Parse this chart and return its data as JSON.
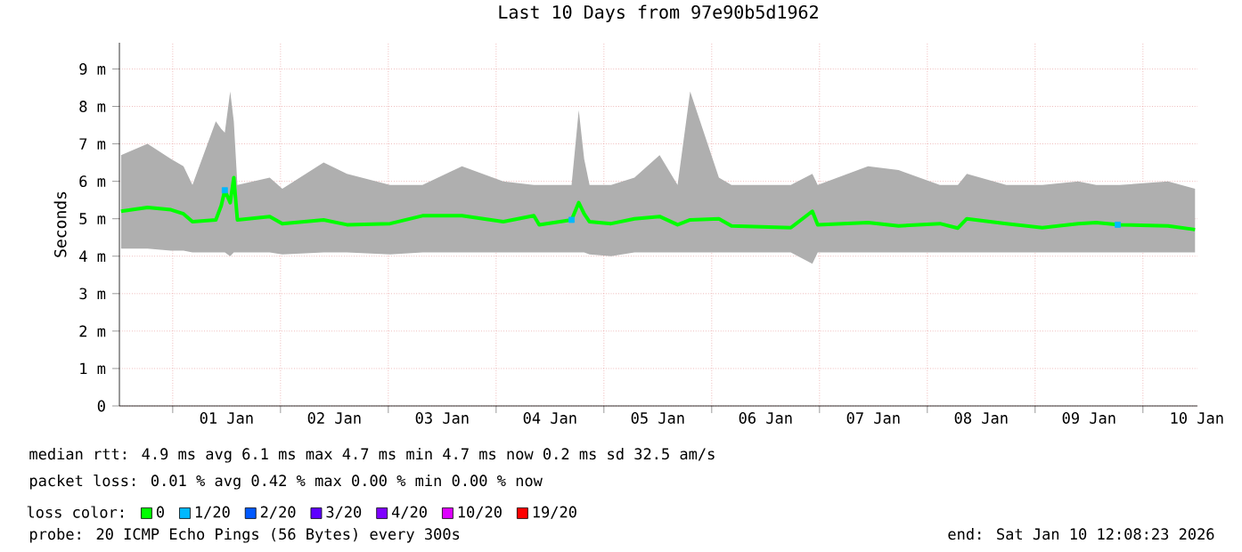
{
  "chart_data": {
    "type": "line",
    "title": "Last 10 Days from 97e90b5d1962",
    "ylabel": "Seconds",
    "xlim": [
      "2025-12-31T12:08",
      "2026-01-10T12:08"
    ],
    "xticks": [
      {
        "value": "2026-01-01",
        "label": null
      },
      {
        "value": "2026-01-01T12:00",
        "label": "01 Jan"
      },
      {
        "value": "2026-01-02",
        "label": null
      },
      {
        "value": "2026-01-02T12:00",
        "label": "02 Jan"
      },
      {
        "value": "2026-01-03",
        "label": null
      },
      {
        "value": "2026-01-03T12:00",
        "label": "03 Jan"
      },
      {
        "value": "2026-01-04",
        "label": null
      },
      {
        "value": "2026-01-04T12:00",
        "label": "04 Jan"
      },
      {
        "value": "2026-01-05",
        "label": null
      },
      {
        "value": "2026-01-05T12:00",
        "label": "05 Jan"
      },
      {
        "value": "2026-01-06",
        "label": null
      },
      {
        "value": "2026-01-06T12:00",
        "label": "06 Jan"
      },
      {
        "value": "2026-01-07",
        "label": null
      },
      {
        "value": "2026-01-07T12:00",
        "label": "07 Jan"
      },
      {
        "value": "2026-01-08",
        "label": null
      },
      {
        "value": "2026-01-08T12:00",
        "label": "08 Jan"
      },
      {
        "value": "2026-01-09",
        "label": null
      },
      {
        "value": "2026-01-09T12:00",
        "label": "09 Jan"
      },
      {
        "value": "2026-01-10",
        "label": null
      },
      {
        "value": "2026-01-10T12:00",
        "label": "10 Jan"
      }
    ],
    "ylim": [
      0,
      9.7
    ],
    "yticks": [
      0,
      {
        "value": 1,
        "label": "1 m"
      },
      {
        "value": 2,
        "label": "2 m"
      },
      {
        "value": 3,
        "label": "3 m"
      },
      {
        "value": 4,
        "label": "4 m"
      },
      {
        "value": 5,
        "label": "5 m"
      },
      {
        "value": 6,
        "label": "6 m"
      },
      {
        "value": 7,
        "label": "7 m"
      },
      {
        "value": 8,
        "label": "8 m"
      },
      {
        "value": 9,
        "label": "9 m"
      }
    ],
    "grid": true,
    "legend": "bottom",
    "legend_title": "loss color:",
    "x": [
      "2025-12-31T12:30",
      "2025-12-31T18:24",
      "2025-12-31T23:36",
      "2026-01-01T02:24",
      "2026-01-01T04:24",
      "2026-01-01T09:36",
      "2026-01-01T10:48",
      "2026-01-01T11:36",
      "2026-01-01T12:48",
      "2026-01-01T13:36",
      "2026-01-01T14:24",
      "2026-01-01T21:36",
      "2026-01-02T00:24",
      "2026-01-02T09:36",
      "2026-01-02T14:48",
      "2026-01-03T00:24",
      "2026-01-03T07:36",
      "2026-01-03T16:24",
      "2026-01-04T01:36",
      "2026-01-04T08:24",
      "2026-01-04T09:36",
      "2026-01-04T16:48",
      "2026-01-04T18:24",
      "2026-01-04T19:36",
      "2026-01-04T20:48",
      "2026-01-05T01:36",
      "2026-01-05T06:48",
      "2026-01-05T12:24",
      "2026-01-05T16:24",
      "2026-01-05T19:12",
      "2026-01-06T01:36",
      "2026-01-06T04:24",
      "2026-01-06T17:36",
      "2026-01-06T22:24",
      "2026-01-06T23:36",
      "2026-01-07T10:48",
      "2026-01-07T17:36",
      "2026-01-08T02:48",
      "2026-01-08T06:48",
      "2026-01-08T08:48",
      "2026-01-08T17:36",
      "2026-01-09T01:36",
      "2026-01-09T09:36",
      "2026-01-09T13:36",
      "2026-01-09T18:48",
      "2026-01-10T05:36",
      "2026-01-10T11:36"
    ],
    "series": [
      {
        "name": "0",
        "color": "#00ff00",
        "values": [
          5.2,
          5.3,
          5.24,
          5.13,
          4.92,
          4.97,
          5.35,
          5.76,
          5.43,
          6.1,
          4.97,
          5.06,
          4.87,
          4.97,
          4.84,
          4.87,
          5.08,
          5.08,
          4.92,
          5.08,
          4.84,
          4.97,
          5.43,
          5.13,
          4.92,
          4.87,
          5.0,
          5.06,
          4.84,
          4.97,
          5.0,
          4.81,
          4.76,
          5.2,
          4.84,
          4.9,
          4.81,
          4.87,
          4.75,
          5.0,
          4.87,
          4.76,
          4.87,
          4.9,
          4.84,
          4.81,
          4.71
        ],
        "lower": [
          4.2,
          4.2,
          4.15,
          4.15,
          4.1,
          4.1,
          4.1,
          4.1,
          4.0,
          4.1,
          4.1,
          4.1,
          4.05,
          4.1,
          4.1,
          4.05,
          4.1,
          4.1,
          4.1,
          4.1,
          4.1,
          4.1,
          4.1,
          4.1,
          4.05,
          4.0,
          4.1,
          4.1,
          4.1,
          4.1,
          4.1,
          4.1,
          4.1,
          3.8,
          4.1,
          4.1,
          4.1,
          4.1,
          4.1,
          4.1,
          4.1,
          4.1,
          4.1,
          4.1,
          4.1,
          4.1,
          4.1
        ],
        "upper": [
          6.7,
          7.0,
          6.6,
          6.4,
          5.9,
          7.6,
          7.4,
          7.3,
          8.4,
          7.6,
          5.9,
          6.1,
          5.8,
          6.5,
          6.2,
          5.9,
          5.9,
          6.4,
          6.0,
          5.9,
          5.9,
          5.9,
          7.9,
          6.6,
          5.9,
          5.9,
          6.1,
          6.7,
          5.9,
          8.4,
          6.1,
          5.9,
          5.9,
          6.2,
          5.9,
          6.4,
          6.3,
          5.9,
          5.9,
          6.2,
          5.9,
          5.9,
          6.0,
          5.9,
          5.9,
          6.0,
          5.8
        ]
      },
      {
        "name": "1/20",
        "color": "#00b8ff",
        "type": "scatter",
        "marker": "square",
        "x": [
          "2026-01-01T11:36",
          "2026-01-04T16:48",
          "2026-01-09T18:24"
        ],
        "values": [
          5.76,
          4.97,
          4.84
        ]
      },
      {
        "name": "2/20",
        "color": "#0059ff",
        "values": [
          null,
          null,
          null,
          null,
          null,
          null,
          null,
          null,
          null,
          null,
          null,
          null,
          null,
          null,
          null,
          null,
          null,
          null,
          null,
          null,
          null,
          null,
          null,
          null,
          null,
          null,
          null,
          null,
          null,
          null,
          null,
          null,
          null,
          null,
          null,
          null,
          null,
          null,
          null,
          null,
          null,
          null,
          null,
          null,
          null,
          null,
          null
        ]
      },
      {
        "name": "3/20",
        "color": "#5e00ff",
        "values": [
          null,
          null,
          null,
          null,
          null,
          null,
          null,
          null,
          null,
          null,
          null,
          null,
          null,
          null,
          null,
          null,
          null,
          null,
          null,
          null,
          null,
          null,
          null,
          null,
          null,
          null,
          null,
          null,
          null,
          null,
          null,
          null,
          null,
          null,
          null,
          null,
          null,
          null,
          null,
          null,
          null,
          null,
          null,
          null,
          null,
          null,
          null
        ]
      },
      {
        "name": "4/20",
        "color": "#7e00ff",
        "values": [
          null,
          null,
          null,
          null,
          null,
          null,
          null,
          null,
          null,
          null,
          null,
          null,
          null,
          null,
          null,
          null,
          null,
          null,
          null,
          null,
          null,
          null,
          null,
          null,
          null,
          null,
          null,
          null,
          null,
          null,
          null,
          null,
          null,
          null,
          null,
          null,
          null,
          null,
          null,
          null,
          null,
          null,
          null,
          null,
          null,
          null,
          null
        ]
      },
      {
        "name": "10/20",
        "color": "#dd00ff",
        "values": [
          null,
          null,
          null,
          null,
          null,
          null,
          null,
          null,
          null,
          null,
          null,
          null,
          null,
          null,
          null,
          null,
          null,
          null,
          null,
          null,
          null,
          null,
          null,
          null,
          null,
          null,
          null,
          null,
          null,
          null,
          null,
          null,
          null,
          null,
          null,
          null,
          null,
          null,
          null,
          null,
          null,
          null,
          null,
          null,
          null,
          null,
          null
        ]
      },
      {
        "name": "19/20",
        "color": "#ff0000",
        "values": [
          null,
          null,
          null,
          null,
          null,
          null,
          null,
          null,
          null,
          null,
          null,
          null,
          null,
          null,
          null,
          null,
          null,
          null,
          null,
          null,
          null,
          null,
          null,
          null,
          null,
          null,
          null,
          null,
          null,
          null,
          null,
          null,
          null,
          null,
          null,
          null,
          null,
          null,
          null,
          null,
          null,
          null,
          null,
          null,
          null,
          null,
          null
        ]
      }
    ],
    "annotations": [
      "median rtt: 4.9 ms avg 6.1 ms max 4.7 ms min 4.7 ms now 0.2 ms sd 32.5 am/s",
      "packet loss: 0.01 % avg 0.42 % max 0.00 % min 0.00 % now",
      "probe: 20 ICMP Echo Pings (56 Bytes) every 300s",
      "end: Sat Jan 10 12:08:23 2026"
    ]
  }
}
